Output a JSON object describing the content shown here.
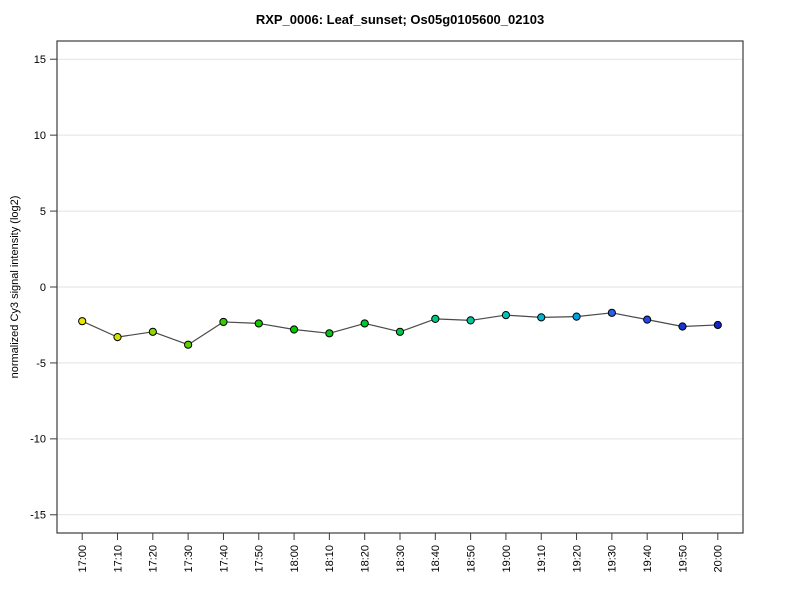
{
  "window": {
    "background_color": "#ffffff"
  },
  "chart_data": {
    "type": "line",
    "title": "RXP_0006: Leaf_sunset; Os05g0105600_02103",
    "xlabel": "",
    "ylabel": "normalized Cy3 signal intensity (log2)",
    "categories": [
      "17:00",
      "17:10",
      "17:20",
      "17:30",
      "17:40",
      "17:50",
      "18:00",
      "18:10",
      "18:20",
      "18:30",
      "18:40",
      "18:50",
      "19:00",
      "19:10",
      "19:20",
      "19:30",
      "19:40",
      "19:50",
      "20:00"
    ],
    "values": [
      -2.25,
      -3.3,
      -2.95,
      -3.8,
      -2.3,
      -2.4,
      -2.8,
      -3.05,
      -2.4,
      -2.95,
      -2.1,
      -2.2,
      -1.85,
      -2.0,
      -1.95,
      -1.7,
      -2.15,
      -2.6,
      -2.5
    ],
    "series_name": "normalized Cy3 signal intensity (log2)",
    "yticks": [
      15,
      10,
      5,
      0,
      -5,
      -10,
      -15
    ],
    "ylim": [
      -16.2,
      16.2
    ],
    "grid": "horizontal gridlines at every y tick",
    "legend": "none",
    "x_tick_label_rotation_deg": -90,
    "point_colors": [
      "#e8e600",
      "#d4e000",
      "#8cd800",
      "#62d000",
      "#34cc00",
      "#16c800",
      "#00c600",
      "#00c614",
      "#00c62e",
      "#00c846",
      "#00c87d",
      "#00c89b",
      "#00c4bc",
      "#00b4d6",
      "#00a2e2",
      "#2a62ea",
      "#2248e0",
      "#1834d6",
      "#1026cc"
    ],
    "colors": {
      "line": "#4a4a4a",
      "point_border": "#000000",
      "axis_box": "#3c3c3c",
      "grid": "#e2e2e2",
      "text": "#000000",
      "plot_background": "#ffffff"
    }
  }
}
